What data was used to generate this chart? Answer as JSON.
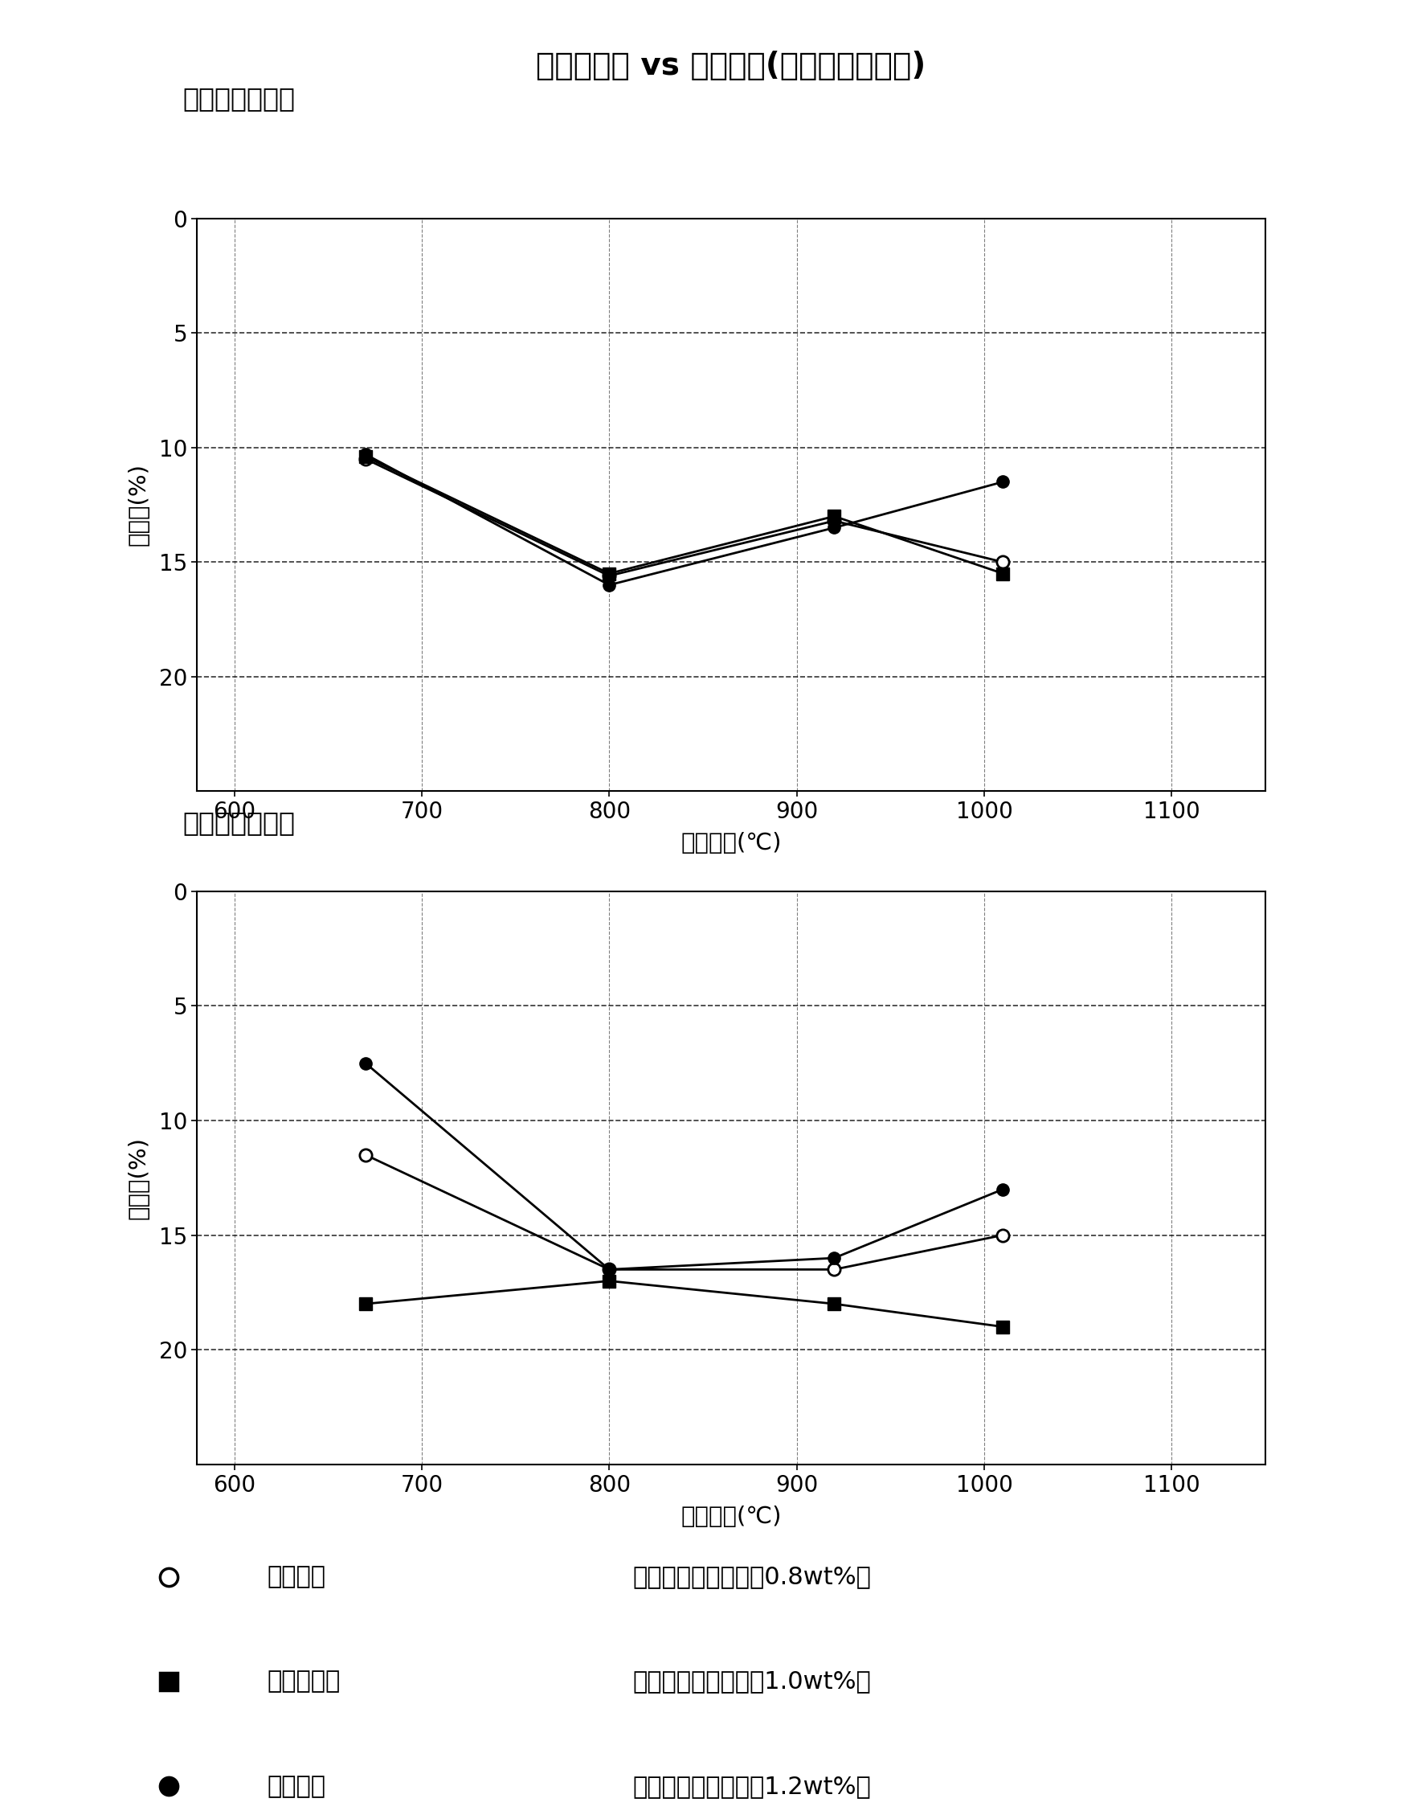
{
  "title": "颗粒收缩率 vs 烧成温度(添加了助烧结剂)",
  "subtitle1": "直径方向收缩率",
  "subtitle2": "厚度方向收缩率",
  "xlabel": "烧成温度(℃)",
  "ylabel": "収縮率(%)",
  "ylabel1": "収縮率(%)",
  "x_values": [
    670,
    800,
    920,
    1010
  ],
  "xlim": [
    580,
    1150
  ],
  "xticks": [
    600,
    700,
    800,
    900,
    1000,
    1100
  ],
  "top_series": {
    "circle_open": [
      10.5,
      15.6,
      13.2,
      15.0
    ],
    "square_filled": [
      10.4,
      15.5,
      13.0,
      15.5
    ],
    "circle_filled": [
      10.3,
      16.0,
      13.5,
      11.5
    ]
  },
  "bottom_series": {
    "circle_open": [
      11.5,
      16.5,
      16.5,
      15.0
    ],
    "square_filled": [
      18.0,
      17.0,
      18.0,
      19.0
    ],
    "circle_filled": [
      7.5,
      16.5,
      16.0,
      13.0
    ]
  },
  "yticks": [
    0,
    5,
    10,
    15,
    20
  ],
  "legend_labels": [
    "正极材料",
    "固体电解质",
    "负极材料"
  ],
  "legend_sublabels": [
    "（助烧结剂添加率　0.8wt%）",
    "（助烧结剂添加率　1.0wt%）",
    "（助烧结剂添加率　1.2wt%）"
  ],
  "bg_color": "#ffffff",
  "line_color": "#000000"
}
